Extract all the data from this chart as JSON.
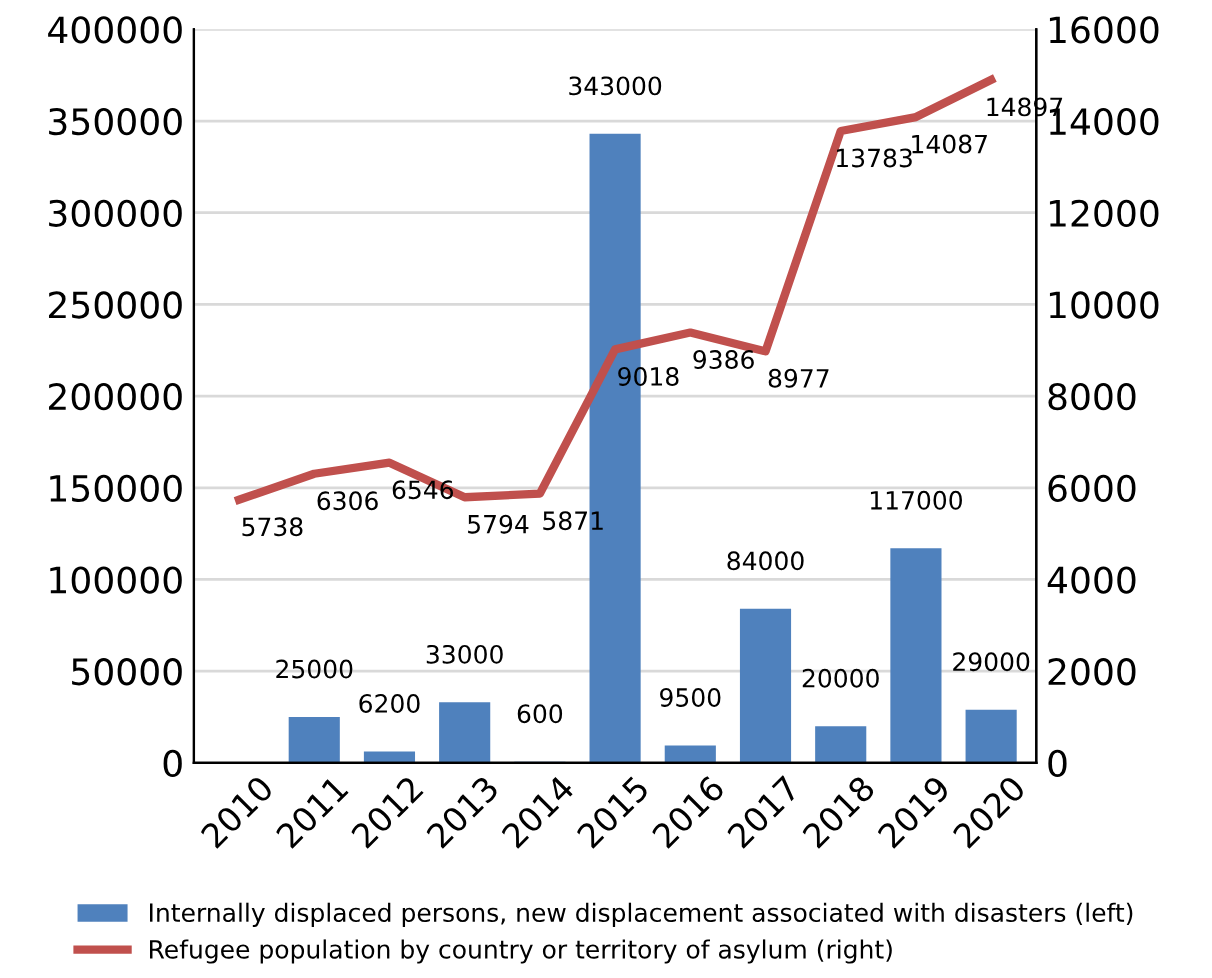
{
  "chart_data": {
    "type": "bar",
    "categories": [
      "2010",
      "2011",
      "2012",
      "2013",
      "2014",
      "2015",
      "2016",
      "2017",
      "2018",
      "2019",
      "2020"
    ],
    "series": [
      {
        "name": "Internally displaced persons, new displacement associated with disasters (left)",
        "color": "#4f81bd",
        "values": [
          null,
          25000,
          6200,
          33000,
          600,
          343000,
          9500,
          84000,
          20000,
          117000,
          29000
        ]
      },
      {
        "name": "Refugee population by country or territory of asylum (right)",
        "type": "line",
        "axis": "y2",
        "color": "#c0504d",
        "values": [
          5738,
          6306,
          6546,
          5794,
          5871,
          9018,
          9386,
          8977,
          13783,
          14087,
          14897
        ]
      }
    ],
    "ylim": [
      0,
      400000
    ],
    "yticks": [
      0,
      50000,
      100000,
      150000,
      200000,
      250000,
      300000,
      350000,
      400000
    ],
    "y2lim": [
      0,
      16000
    ],
    "y2ticks": [
      0,
      2000,
      4000,
      6000,
      8000,
      10000,
      12000,
      14000,
      16000
    ],
    "data_labels": true,
    "grid": "y",
    "legend": "bottom",
    "marker": "none",
    "line_style": "solid"
  }
}
